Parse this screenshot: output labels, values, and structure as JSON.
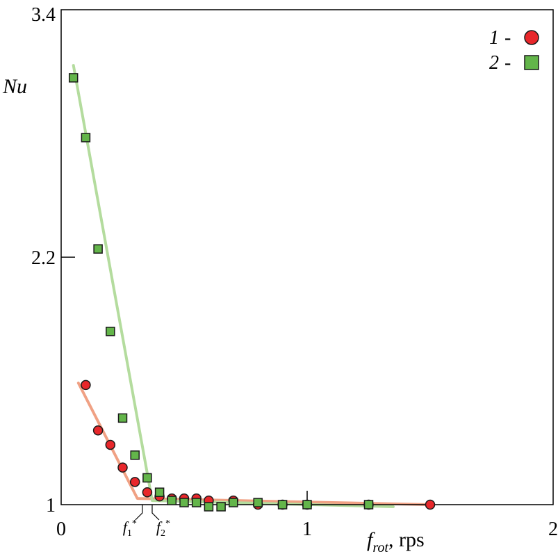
{
  "chart_data": {
    "type": "scatter",
    "xlabel": {
      "main": "f",
      "sub": "rot",
      "unit": ", rps"
    },
    "ylabel": "Nu",
    "xlim": [
      0,
      2
    ],
    "ylim": [
      1,
      3.4
    ],
    "x_ticks": [
      {
        "value": 0,
        "label": "0"
      },
      {
        "value": 1,
        "label": "1"
      },
      {
        "value": 2,
        "label": "2"
      }
    ],
    "y_ticks": [
      {
        "value": 1,
        "label": "1"
      },
      {
        "value": 2.2,
        "label": "2.2"
      },
      {
        "value": 3.4,
        "label": "3.4"
      }
    ],
    "grid": false,
    "legend_position": "top-right",
    "series": [
      {
        "name": "1",
        "marker": "circle",
        "fill": "#e8272b",
        "points": [
          {
            "x": 0.1,
            "y": 1.58
          },
          {
            "x": 0.15,
            "y": 1.36
          },
          {
            "x": 0.2,
            "y": 1.29
          },
          {
            "x": 0.25,
            "y": 1.18
          },
          {
            "x": 0.3,
            "y": 1.11
          },
          {
            "x": 0.35,
            "y": 1.06
          },
          {
            "x": 0.4,
            "y": 1.04
          },
          {
            "x": 0.45,
            "y": 1.03
          },
          {
            "x": 0.5,
            "y": 1.03
          },
          {
            "x": 0.55,
            "y": 1.03
          },
          {
            "x": 0.6,
            "y": 1.02
          },
          {
            "x": 0.7,
            "y": 1.02
          },
          {
            "x": 0.8,
            "y": 1.0
          },
          {
            "x": 0.9,
            "y": 1.0
          },
          {
            "x": 1.0,
            "y": 1.0
          },
          {
            "x": 1.25,
            "y": 1.0
          },
          {
            "x": 1.5,
            "y": 1.0
          }
        ],
        "fit": {
          "color": "#f0a184",
          "points": [
            [
              0.07,
              1.59
            ],
            [
              0.31,
              1.03
            ],
            [
              1.5,
              1.0
            ]
          ]
        }
      },
      {
        "name": "2",
        "marker": "square",
        "fill": "#63b54a",
        "points": [
          {
            "x": 0.05,
            "y": 3.07
          },
          {
            "x": 0.1,
            "y": 2.78
          },
          {
            "x": 0.15,
            "y": 2.24
          },
          {
            "x": 0.2,
            "y": 1.84
          },
          {
            "x": 0.25,
            "y": 1.42
          },
          {
            "x": 0.3,
            "y": 1.24
          },
          {
            "x": 0.35,
            "y": 1.13
          },
          {
            "x": 0.4,
            "y": 1.06
          },
          {
            "x": 0.45,
            "y": 1.02
          },
          {
            "x": 0.5,
            "y": 1.01
          },
          {
            "x": 0.55,
            "y": 1.01
          },
          {
            "x": 0.6,
            "y": 0.99
          },
          {
            "x": 0.65,
            "y": 0.99
          },
          {
            "x": 0.7,
            "y": 1.01
          },
          {
            "x": 0.8,
            "y": 1.01
          },
          {
            "x": 0.9,
            "y": 1.0
          },
          {
            "x": 1.0,
            "y": 1.0
          },
          {
            "x": 1.25,
            "y": 1.0
          }
        ],
        "fit": {
          "color": "#b4dc9e",
          "points": [
            [
              0.05,
              3.13
            ],
            [
              0.37,
              1.02
            ],
            [
              1.35,
              0.99
            ]
          ]
        }
      }
    ],
    "markers": [
      {
        "label": "f",
        "sub": "1",
        "sup": "*",
        "x": 0.33
      },
      {
        "label": "f",
        "sub": "2",
        "sup": "*",
        "x": 0.37
      }
    ]
  }
}
